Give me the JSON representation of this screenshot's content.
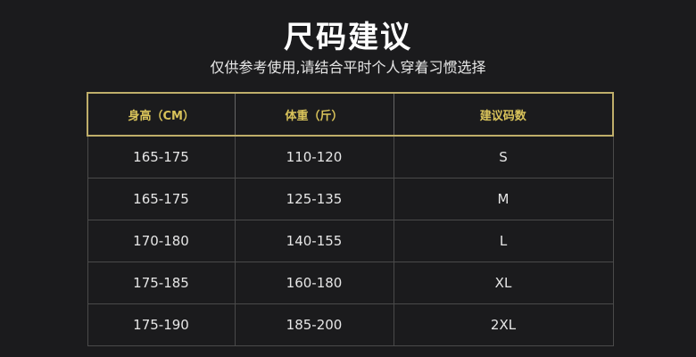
{
  "title": "尺码建议",
  "subtitle": "仅供参考使用,请结合平时个人穿着习惯选择",
  "table": {
    "headers": [
      "身高（CM）",
      "体重（斤）",
      "建议码数"
    ],
    "rows": [
      [
        "165-175",
        "110-120",
        "S"
      ],
      [
        "165-175",
        "125-135",
        "M"
      ],
      [
        "170-180",
        "140-155",
        "L"
      ],
      [
        "175-185",
        "160-180",
        "XL"
      ],
      [
        "175-190",
        "185-200",
        "2XL"
      ]
    ]
  },
  "colors": {
    "background": "#1b1b1d",
    "header_text": "#d9c35a",
    "header_border": "#bfae6a"
  }
}
